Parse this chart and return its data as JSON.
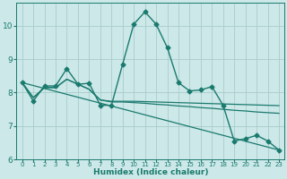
{
  "xlabel": "Humidex (Indice chaleur)",
  "bg_color": "#cce8e8",
  "grid_color": "#aacccc",
  "line_color": "#1a7a6e",
  "xlim": [
    -0.5,
    23.5
  ],
  "ylim": [
    6,
    10.7
  ],
  "xticks": [
    0,
    1,
    2,
    3,
    4,
    5,
    6,
    7,
    8,
    9,
    10,
    11,
    12,
    13,
    14,
    15,
    16,
    17,
    18,
    19,
    20,
    21,
    22,
    23
  ],
  "yticks": [
    6,
    7,
    8,
    9,
    10
  ],
  "series": [
    {
      "x": [
        0,
        1,
        2,
        3,
        4,
        5,
        6,
        7,
        8,
        9,
        10,
        11,
        12,
        13,
        14,
        15,
        16,
        17,
        18,
        19,
        20,
        21,
        22,
        23
      ],
      "y": [
        8.3,
        7.75,
        8.2,
        8.2,
        8.72,
        8.25,
        8.28,
        7.62,
        7.62,
        8.85,
        10.05,
        10.42,
        10.05,
        9.35,
        8.3,
        8.05,
        8.08,
        8.18,
        7.62,
        6.55,
        6.62,
        6.72,
        6.55,
        6.28
      ],
      "marker": "D",
      "markersize": 2.5,
      "linewidth": 1.0
    },
    {
      "x": [
        0,
        1,
        2,
        3,
        4,
        5,
        6,
        7,
        8,
        9,
        10,
        11,
        12,
        13,
        14,
        15,
        16,
        17,
        18,
        19,
        20,
        21,
        22,
        23
      ],
      "y": [
        8.3,
        7.85,
        8.15,
        8.15,
        8.4,
        8.25,
        8.1,
        7.78,
        7.72,
        7.72,
        7.7,
        7.68,
        7.65,
        7.63,
        7.6,
        7.58,
        7.55,
        7.53,
        7.5,
        7.47,
        7.45,
        7.42,
        7.4,
        7.38
      ],
      "marker": null,
      "linewidth": 0.9
    },
    {
      "x": [
        0,
        1,
        2,
        3,
        4,
        5,
        6,
        7,
        8,
        9,
        10,
        11,
        12,
        13,
        14,
        15,
        16,
        17,
        18,
        19,
        20,
        21,
        22,
        23
      ],
      "y": [
        8.3,
        7.85,
        8.15,
        8.15,
        8.4,
        8.25,
        8.1,
        7.78,
        7.74,
        7.74,
        7.74,
        7.73,
        7.72,
        7.71,
        7.7,
        7.69,
        7.68,
        7.67,
        7.66,
        7.65,
        7.64,
        7.63,
        7.62,
        7.61
      ],
      "marker": null,
      "linewidth": 0.9
    },
    {
      "x": [
        0,
        23
      ],
      "y": [
        8.3,
        6.28
      ],
      "marker": null,
      "linewidth": 0.9
    }
  ]
}
